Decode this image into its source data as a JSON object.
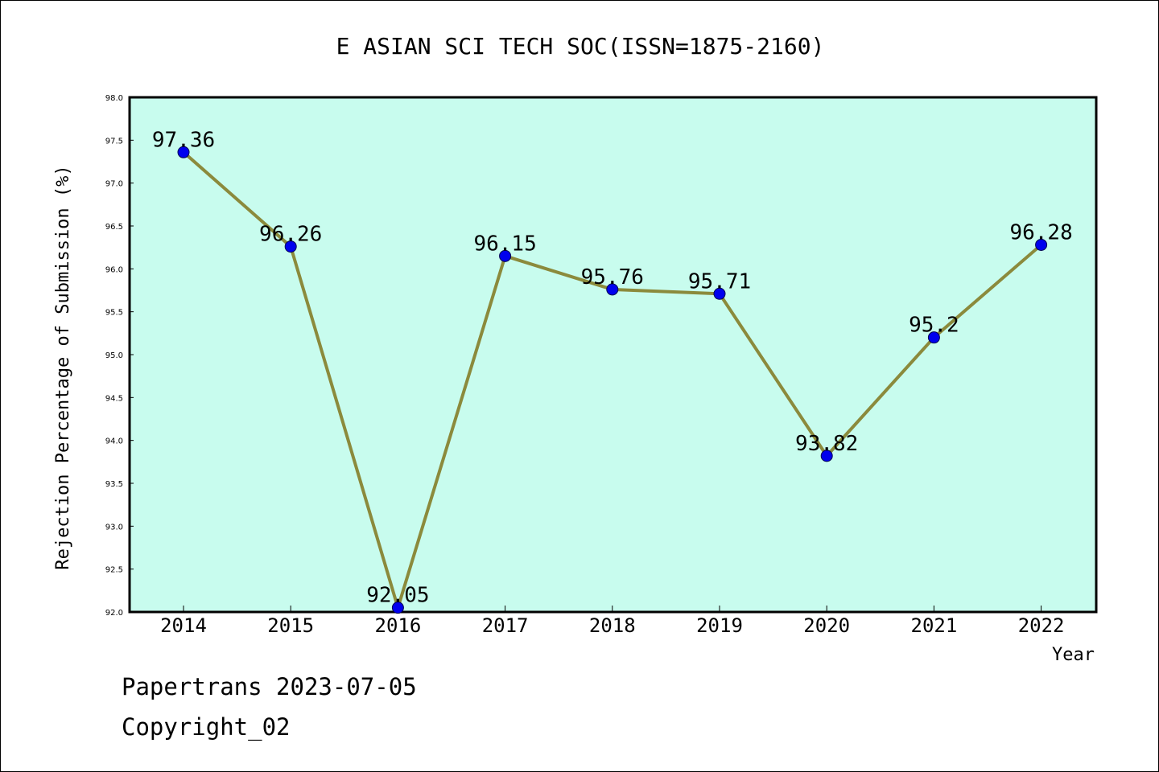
{
  "chart_data": {
    "type": "line",
    "title": "E ASIAN SCI TECH SOC(ISSN=1875-2160)",
    "xlabel": "Year",
    "ylabel": "Rejection Percentage of Submission (%)",
    "categories": [
      "2014",
      "2015",
      "2016",
      "2017",
      "2018",
      "2019",
      "2020",
      "2021",
      "2022"
    ],
    "series": [
      {
        "values": [
          97.36,
          96.26,
          92.05,
          96.15,
          95.76,
          95.71,
          93.82,
          95.2,
          96.28
        ],
        "labels": [
          "97.36",
          "96.26",
          "92.05",
          "96.15",
          "95.76",
          "95.71",
          "93.82",
          "95.2",
          "96.28"
        ]
      }
    ],
    "ylim": [
      92.0,
      98.0
    ],
    "yticks": [
      "92.0",
      "92.5",
      "93.0",
      "93.5",
      "94.0",
      "94.5",
      "95.0",
      "95.5",
      "96.0",
      "96.5",
      "97.0",
      "97.5",
      "98.0"
    ],
    "grid": false,
    "colors": {
      "plot_background": "#c8fcee",
      "line": "#8b8a3c",
      "marker": "#0000ee"
    }
  },
  "footer": {
    "line1": "Papertrans 2023-07-05",
    "line2": "Copyright_02"
  }
}
